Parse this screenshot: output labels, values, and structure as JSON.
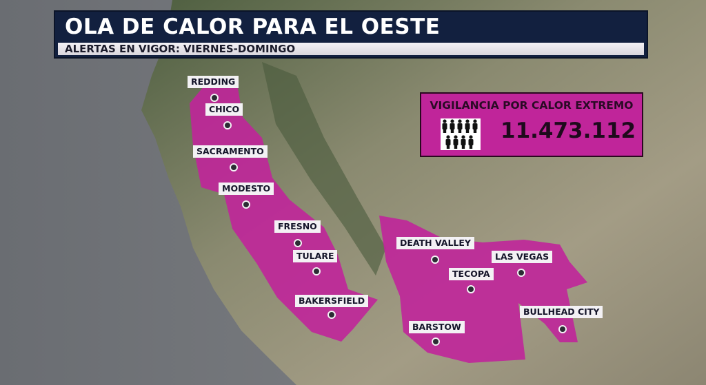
{
  "header": {
    "title": "OLA DE CALOR PARA EL OESTE",
    "subtitle": "ALERTAS EN VIGOR: VIERNES-DOMINGO"
  },
  "stat_box": {
    "label": "VIGILANCIA POR CALOR EXTREMO",
    "value": "11.473.112",
    "icon": "people-icon"
  },
  "cities": [
    {
      "name": "REDDING"
    },
    {
      "name": "CHICO"
    },
    {
      "name": "SACRAMENTO"
    },
    {
      "name": "MODESTO"
    },
    {
      "name": "FRESNO"
    },
    {
      "name": "TULARE"
    },
    {
      "name": "BAKERSFIELD"
    },
    {
      "name": "DEATH VALLEY"
    },
    {
      "name": "TECOPA"
    },
    {
      "name": "LAS VEGAS"
    },
    {
      "name": "BULLHEAD CITY"
    },
    {
      "name": "BARSTOW"
    }
  ],
  "colors": {
    "alert_area": "#c0259a",
    "banner": "#12203f",
    "ocean": "#6e7074"
  }
}
